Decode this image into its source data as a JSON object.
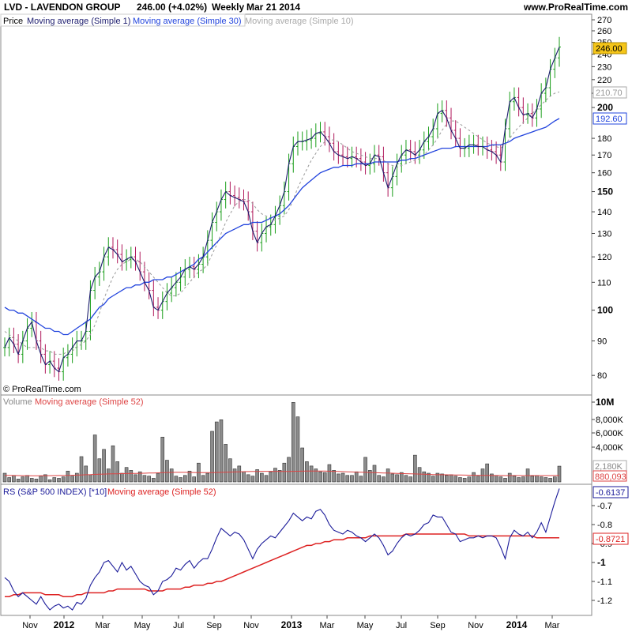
{
  "header": {
    "title": "LVD - LAVENDON GROUP",
    "last": "246.00 (+4.02%)",
    "period": "Weekly",
    "date": "Mar 21 2014",
    "site": "www.ProRealTime.com"
  },
  "price_panel": {
    "legend": [
      "Price",
      "Moving average (Simple 1)",
      "Moving average (Simple 30)",
      "Moving average (Simple 10)"
    ],
    "copyright": "© ProRealTime.com",
    "tags": {
      "last": "246.00",
      "ma10": "210.70",
      "ma30": "192.60"
    }
  },
  "volume_panel": {
    "legend": [
      "Volume",
      "Moving average (Simple 52)"
    ],
    "tags": {
      "vol": "2,180K",
      "ma52": "880,093"
    }
  },
  "rs_panel": {
    "legend": [
      "RS (S&P 500 INDEX) [*10]",
      "Moving average (Simple 52)"
    ],
    "tags": {
      "rs": "-0.6137",
      "ma52": "-0.8721"
    }
  },
  "colors": {
    "up": "#1a9e1a",
    "down": "#b0195b",
    "ma1": "#1c1c6e",
    "ma30": "#2244dd",
    "ma10": "#999999",
    "rs": "#1a1a99",
    "rsma": "#dd2222",
    "volma": "#dd4444"
  },
  "chart_data": {
    "type": "line",
    "x_labels": [
      "Nov",
      "2012",
      "Mar",
      "May",
      "Jul",
      "Sep",
      "Nov",
      "2013",
      "Mar",
      "May",
      "Jul",
      "Sep",
      "Nov",
      "2014",
      "Mar"
    ],
    "price_axis": [
      "270",
      "260",
      "250",
      "240",
      "230",
      "220",
      "210",
      "200",
      "180",
      "170",
      "160",
      "150",
      "140",
      "130",
      "120",
      "110",
      "100",
      "90",
      "80"
    ],
    "volume_axis": [
      "10M",
      "8,000K",
      "6,000K",
      "4,000K"
    ],
    "rs_axis": [
      "-0.7",
      "-0.8",
      "-0.9",
      "-1",
      "-1.1",
      "-1.2"
    ],
    "price_close": [
      88,
      91,
      89,
      86,
      90,
      94,
      96,
      90,
      86,
      83,
      84,
      82,
      81,
      85,
      86,
      88,
      90,
      90,
      93,
      107,
      112,
      114,
      120,
      124,
      123,
      121,
      118,
      119,
      120,
      118,
      114,
      110,
      107,
      101,
      100,
      103,
      106,
      108,
      110,
      112,
      115,
      116,
      115,
      117,
      120,
      127,
      135,
      140,
      146,
      150,
      148,
      147,
      146,
      145,
      140,
      131,
      126,
      130,
      133,
      134,
      138,
      143,
      150,
      165,
      175,
      178,
      178,
      179,
      180,
      183,
      184,
      181,
      177,
      172,
      170,
      169,
      168,
      169,
      168,
      166,
      164,
      165,
      170,
      169,
      160,
      152,
      158,
      165,
      170,
      173,
      172,
      170,
      173,
      178,
      181,
      186,
      196,
      198,
      193,
      185,
      180,
      174,
      174,
      176,
      176,
      175,
      175,
      173,
      172,
      170,
      166,
      186,
      204,
      207,
      200,
      195,
      196,
      193,
      199,
      210,
      214,
      228,
      237,
      246
    ],
    "price_ma10": [
      93,
      92,
      91,
      90,
      89,
      88,
      88,
      88,
      88,
      87,
      87,
      86,
      86,
      86,
      87,
      87,
      88,
      89,
      90,
      92,
      95,
      99,
      104,
      108,
      112,
      115,
      117,
      118,
      119,
      119,
      118,
      116,
      114,
      112,
      110,
      108,
      106,
      105,
      105,
      106,
      108,
      110,
      112,
      114,
      115,
      117,
      121,
      125,
      130,
      135,
      139,
      143,
      145,
      146,
      146,
      144,
      141,
      139,
      138,
      137,
      136,
      137,
      138,
      141,
      146,
      152,
      157,
      162,
      167,
      171,
      175,
      178,
      179,
      179,
      178,
      176,
      174,
      172,
      171,
      170,
      169,
      168,
      168,
      168,
      167,
      165,
      164,
      163,
      164,
      165,
      166,
      167,
      168,
      170,
      173,
      176,
      180,
      185,
      189,
      191,
      191,
      189,
      187,
      185,
      183,
      181,
      179,
      177,
      176,
      175,
      174,
      176,
      180,
      184,
      187,
      190,
      193,
      196,
      199,
      202,
      205,
      208,
      210,
      211
    ],
    "price_ma30": [
      101,
      100,
      100,
      99,
      99,
      98,
      97,
      96,
      95,
      94,
      94,
      93,
      93,
      92,
      92,
      93,
      94,
      95,
      96,
      97,
      99,
      101,
      102,
      104,
      105,
      106,
      107,
      108,
      108,
      109,
      109,
      110,
      110,
      111,
      111,
      111,
      112,
      112,
      113,
      114,
      115,
      116,
      117,
      119,
      120,
      122,
      124,
      126,
      128,
      130,
      131,
      132,
      133,
      134,
      134,
      135,
      135,
      135,
      136,
      137,
      138,
      139,
      141,
      143,
      146,
      149,
      152,
      154,
      156,
      158,
      160,
      161,
      162,
      163,
      163,
      164,
      164,
      164,
      165,
      165,
      165,
      165,
      166,
      166,
      166,
      166,
      166,
      166,
      167,
      167,
      168,
      168,
      169,
      170,
      171,
      172,
      173,
      174,
      174,
      174,
      175,
      175,
      175,
      175,
      175,
      175,
      175,
      175,
      176,
      176,
      176,
      177,
      178,
      180,
      181,
      182,
      183,
      184,
      185,
      186,
      187,
      189,
      191,
      192.6
    ],
    "volume_k": [
      1200,
      600,
      900,
      400,
      700,
      900,
      500,
      400,
      800,
      1000,
      300,
      600,
      500,
      700,
      1500,
      800,
      1200,
      3500,
      2200,
      1000,
      6500,
      3200,
      4500,
      1800,
      5000,
      2800,
      1200,
      2000,
      1600,
      1000,
      1400,
      900,
      800,
      500,
      1200,
      6200,
      3000,
      1800,
      800,
      600,
      900,
      1500,
      700,
      2600,
      900,
      1200,
      7000,
      8300,
      8600,
      5200,
      3200,
      1800,
      2200,
      1400,
      1000,
      800,
      1700,
      1200,
      900,
      1400,
      1900,
      1600,
      2600,
      3400,
      11000,
      9000,
      4700,
      2800,
      2200,
      1800,
      1400,
      1300,
      2400,
      1600,
      1100,
      1200,
      900,
      900,
      1400,
      800,
      3400,
      1600,
      2300,
      900,
      700,
      1800,
      1100,
      1000,
      1300,
      900,
      700,
      3700,
      2000,
      1400,
      1200,
      800,
      1200,
      1100,
      900,
      1000,
      800,
      600,
      500,
      700,
      1300,
      800,
      1800,
      2500,
      1100,
      900,
      700,
      500,
      1200,
      800,
      600,
      700,
      1800,
      800,
      900,
      700,
      600,
      500,
      700,
      2180
    ],
    "volume_ma52": [
      900,
      890,
      880,
      870,
      860,
      860,
      850,
      850,
      850,
      860,
      860,
      870,
      880,
      890,
      900,
      920,
      940,
      960,
      990,
      1010,
      1040,
      1060,
      1080,
      1100,
      1120,
      1130,
      1150,
      1160,
      1170,
      1180,
      1190,
      1200,
      1220,
      1240,
      1260,
      1280,
      1300,
      1310,
      1320,
      1320,
      1320,
      1310,
      1300,
      1290,
      1280,
      1280,
      1290,
      1300,
      1320,
      1340,
      1360,
      1380,
      1400,
      1420,
      1430,
      1440,
      1450,
      1460,
      1460,
      1460,
      1460,
      1460,
      1450,
      1450,
      1460,
      1480,
      1490,
      1500,
      1500,
      1500,
      1500,
      1500,
      1480,
      1460,
      1440,
      1420,
      1400,
      1380,
      1360,
      1340,
      1320,
      1300,
      1280,
      1260,
      1240,
      1220,
      1200,
      1180,
      1160,
      1140,
      1120,
      1100,
      1080,
      1060,
      1040,
      1020,
      1000,
      990,
      980,
      970,
      960,
      950,
      940,
      930,
      920,
      910,
      900,
      895,
      890,
      885,
      880,
      878,
      876,
      874,
      872,
      870,
      870,
      872,
      874,
      876,
      878,
      879,
      880,
      880
    ],
    "rs": [
      -1.08,
      -1.1,
      -1.15,
      -1.18,
      -1.16,
      -1.18,
      -1.2,
      -1.22,
      -1.18,
      -1.22,
      -1.25,
      -1.23,
      -1.22,
      -1.24,
      -1.23,
      -1.25,
      -1.21,
      -1.22,
      -1.19,
      -1.12,
      -1.08,
      -1.05,
      -1.0,
      -0.99,
      -1.02,
      -1.05,
      -1.0,
      -1.04,
      -1.02,
      -1.06,
      -1.1,
      -1.12,
      -1.13,
      -1.17,
      -1.15,
      -1.1,
      -1.09,
      -1.07,
      -1.03,
      -1.04,
      -1.01,
      -0.99,
      -1.03,
      -1.0,
      -0.98,
      -0.98,
      -0.93,
      -0.87,
      -0.82,
      -0.84,
      -0.86,
      -0.84,
      -0.85,
      -0.88,
      -0.93,
      -0.98,
      -0.93,
      -0.9,
      -0.88,
      -0.86,
      -0.87,
      -0.84,
      -0.81,
      -0.78,
      -0.74,
      -0.76,
      -0.78,
      -0.76,
      -0.77,
      -0.73,
      -0.72,
      -0.75,
      -0.8,
      -0.83,
      -0.84,
      -0.85,
      -0.83,
      -0.84,
      -0.86,
      -0.87,
      -0.89,
      -0.87,
      -0.85,
      -0.87,
      -0.91,
      -0.96,
      -0.94,
      -0.9,
      -0.87,
      -0.85,
      -0.86,
      -0.85,
      -0.83,
      -0.8,
      -0.79,
      -0.75,
      -0.76,
      -0.76,
      -0.8,
      -0.84,
      -0.85,
      -0.89,
      -0.88,
      -0.87,
      -0.87,
      -0.86,
      -0.87,
      -0.86,
      -0.86,
      -0.87,
      -0.92,
      -0.98,
      -0.87,
      -0.83,
      -0.85,
      -0.86,
      -0.84,
      -0.87,
      -0.84,
      -0.79,
      -0.84,
      -0.76,
      -0.68,
      -0.61
    ],
    "rs_ma52": [
      -1.18,
      -1.18,
      -1.17,
      -1.17,
      -1.16,
      -1.16,
      -1.16,
      -1.16,
      -1.16,
      -1.17,
      -1.17,
      -1.17,
      -1.17,
      -1.18,
      -1.18,
      -1.18,
      -1.17,
      -1.17,
      -1.16,
      -1.16,
      -1.16,
      -1.16,
      -1.16,
      -1.15,
      -1.15,
      -1.14,
      -1.14,
      -1.14,
      -1.14,
      -1.14,
      -1.14,
      -1.14,
      -1.15,
      -1.15,
      -1.15,
      -1.15,
      -1.14,
      -1.14,
      -1.14,
      -1.14,
      -1.13,
      -1.13,
      -1.12,
      -1.12,
      -1.12,
      -1.11,
      -1.11,
      -1.1,
      -1.1,
      -1.09,
      -1.08,
      -1.07,
      -1.06,
      -1.05,
      -1.04,
      -1.03,
      -1.02,
      -1.01,
      -1.0,
      -0.99,
      -0.98,
      -0.97,
      -0.96,
      -0.95,
      -0.94,
      -0.93,
      -0.92,
      -0.91,
      -0.91,
      -0.9,
      -0.9,
      -0.89,
      -0.89,
      -0.88,
      -0.88,
      -0.88,
      -0.87,
      -0.87,
      -0.87,
      -0.87,
      -0.87,
      -0.86,
      -0.86,
      -0.86,
      -0.86,
      -0.86,
      -0.86,
      -0.86,
      -0.86,
      -0.85,
      -0.85,
      -0.85,
      -0.85,
      -0.85,
      -0.85,
      -0.85,
      -0.85,
      -0.85,
      -0.85,
      -0.85,
      -0.85,
      -0.85,
      -0.85,
      -0.86,
      -0.86,
      -0.86,
      -0.86,
      -0.86,
      -0.86,
      -0.86,
      -0.86,
      -0.86,
      -0.86,
      -0.86,
      -0.86,
      -0.86,
      -0.86,
      -0.86,
      -0.87,
      -0.87,
      -0.87,
      -0.87,
      -0.87,
      -0.87
    ]
  }
}
